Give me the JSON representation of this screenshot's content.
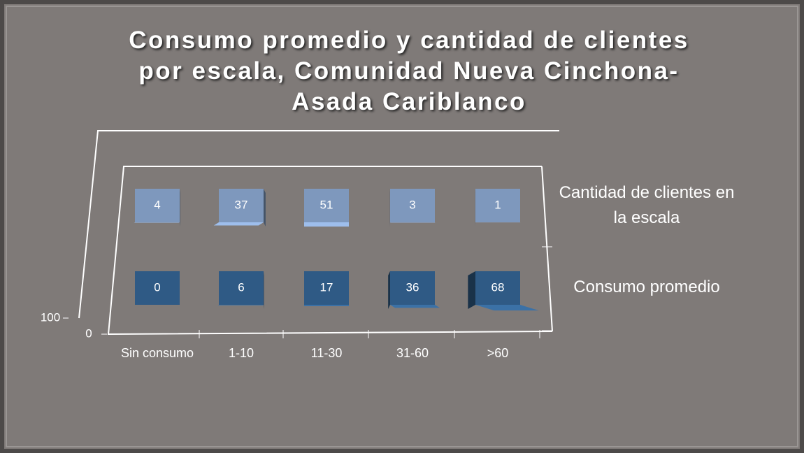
{
  "chart_data": {
    "type": "bar3d",
    "title": "Consumo promedio y cantidad de clientes por escala, Comunidad Nueva Cinchona-Asada Cariblanco",
    "categories": [
      "Sin consumo",
      "1-10",
      "11-30",
      "31-60",
      ">60"
    ],
    "series": [
      {
        "name": "Cantidad de clientes en la escala",
        "color": "#7e98bd",
        "values": [
          4,
          37,
          51,
          3,
          1
        ]
      },
      {
        "name": "Consumo promedio",
        "color": "#2f5a85",
        "values": [
          0,
          6,
          17,
          36,
          68
        ]
      }
    ],
    "ylim": [
      0,
      100
    ],
    "yticks": [
      0,
      100
    ]
  }
}
